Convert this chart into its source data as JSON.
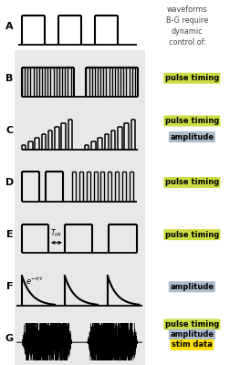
{
  "fig_width": 2.63,
  "fig_height": 4.0,
  "dpi": 100,
  "bg_color": "#e8e8e8",
  "row_labels": [
    "A",
    "B",
    "C",
    "D",
    "E",
    "F",
    "G"
  ],
  "label_color": "#000000",
  "title_text": "waveforms\nB-G require\ndynamic\ncontrol of:",
  "badge_pulse_timing": {
    "text": "pulse timing",
    "bg": "#ccdd44",
    "fg": "#000000"
  },
  "badge_amplitude": {
    "text": "amplitude",
    "bg": "#aabbcc",
    "fg": "#000000"
  },
  "badge_stim_data": {
    "text": "stim data",
    "fg": "#000000",
    "bg": "#ffdd00"
  }
}
